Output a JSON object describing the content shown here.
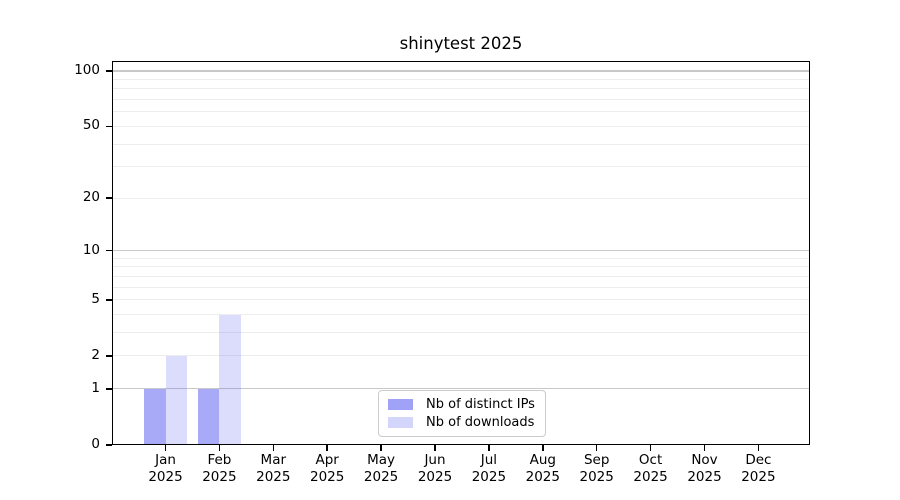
{
  "page": {
    "background_color": "#ffffff",
    "text_color": "#000000"
  },
  "chart_data": {
    "type": "bar",
    "title": "shinytest 2025",
    "categories": [
      "Jan",
      "Feb",
      "Mar",
      "Apr",
      "May",
      "Jun",
      "Jul",
      "Aug",
      "Sep",
      "Oct",
      "Nov",
      "Dec"
    ],
    "x_tick_year": "2025",
    "series": [
      {
        "name": "Nb of distinct IPs",
        "color": "#5156f0",
        "opacity": 0.5,
        "values": [
          1,
          1,
          0,
          0,
          0,
          0,
          0,
          0,
          0,
          0,
          0,
          0
        ]
      },
      {
        "name": "Nb of downloads",
        "color": "#5156f0",
        "opacity": 0.2,
        "values": [
          2,
          4,
          0,
          0,
          0,
          0,
          0,
          0,
          0,
          0,
          0,
          0
        ]
      }
    ],
    "y_axis": {
      "scale": "log1p",
      "tick_labels": [
        "0",
        "1",
        "2",
        "5",
        "10",
        "20",
        "50",
        "100"
      ],
      "tick_values": [
        0,
        1,
        2,
        5,
        10,
        20,
        50,
        100
      ],
      "max_value": 100
    },
    "legend": {
      "position": "inside-bottom-center",
      "entries": [
        "Nb of distinct IPs",
        "Nb of downloads"
      ]
    },
    "grid": {
      "major_color": "#c8c8c8",
      "minor_color": "#ededed"
    }
  }
}
